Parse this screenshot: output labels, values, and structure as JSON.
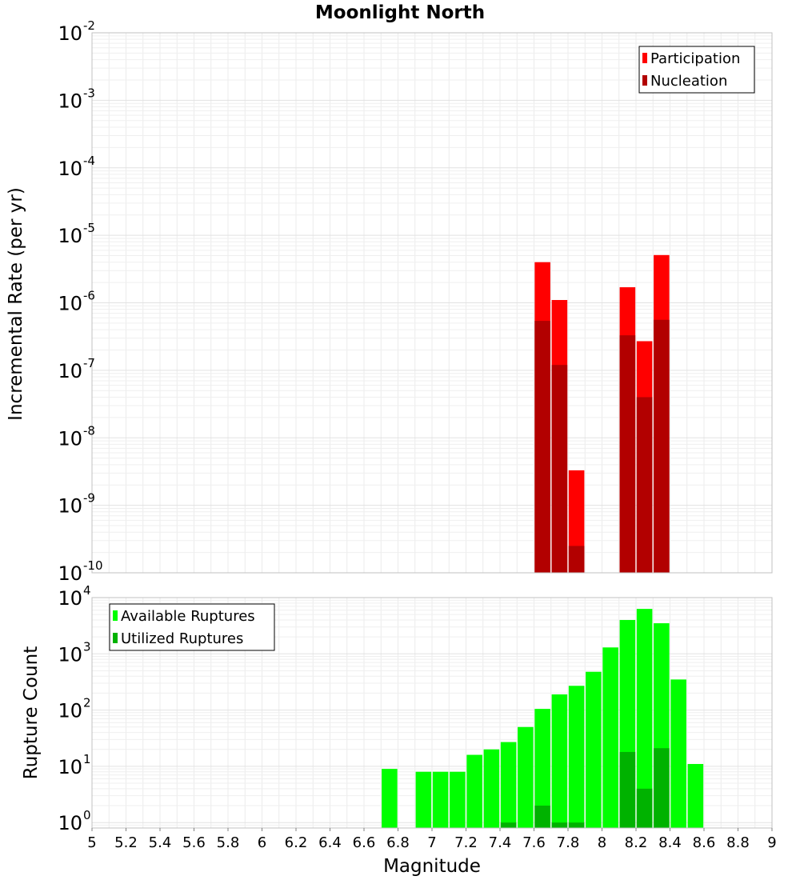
{
  "chart_data": [
    {
      "id": "top",
      "type": "bar",
      "title": "Moonlight North",
      "ylabel": "Incremental Rate (per yr)",
      "xlabel": "",
      "yscale": "log",
      "xlim": [
        5,
        9
      ],
      "ylim": [
        1e-10,
        0.01
      ],
      "y_tick_bases": [
        "10",
        "10",
        "10",
        "10",
        "10",
        "10",
        "10",
        "10",
        "10"
      ],
      "y_tick_exponents": [
        "-10",
        "-9",
        "-8",
        "-7",
        "-6",
        "-5",
        "-4",
        "-3",
        "-2"
      ],
      "legend_position": "top-right",
      "grid": true,
      "series": [
        {
          "name": "Participation",
          "color": "#ff0000",
          "x": [
            7.65,
            7.75,
            7.85,
            8.15,
            8.25,
            8.35
          ],
          "values": [
            4e-06,
            1.1e-06,
            3.3e-09,
            1.7e-06,
            2.7e-07,
            5.1e-06
          ]
        },
        {
          "name": "Nucleation",
          "color": "#b20000",
          "x": [
            7.65,
            7.75,
            7.85,
            8.15,
            8.25,
            8.35
          ],
          "values": [
            5.4e-07,
            1.2e-07,
            2.5e-10,
            3.3e-07,
            4e-08,
            5.6e-07
          ]
        }
      ]
    },
    {
      "id": "bottom",
      "type": "bar",
      "title": "",
      "ylabel": "Rupture Count",
      "xlabel": "Magnitude",
      "yscale": "log",
      "xlim": [
        5,
        9
      ],
      "ylim": [
        0.8,
        10000.0
      ],
      "y_tick_bases": [
        "10",
        "10",
        "10",
        "10",
        "10"
      ],
      "y_tick_exponents": [
        "0",
        "1",
        "2",
        "3",
        "4"
      ],
      "x_tick_labels": [
        "5",
        "5.2",
        "5.4",
        "5.6",
        "5.8",
        "6",
        "6.2",
        "6.4",
        "6.6",
        "6.8",
        "7",
        "7.2",
        "7.4",
        "7.6",
        "7.8",
        "8",
        "8.2",
        "8.4",
        "8.6",
        "8.8",
        "9"
      ],
      "legend_position": "top-left",
      "grid": true,
      "series": [
        {
          "name": "Available Ruptures",
          "color": "#00ff00",
          "x": [
            6.75,
            6.95,
            7.05,
            7.15,
            7.25,
            7.35,
            7.45,
            7.55,
            7.65,
            7.75,
            7.85,
            7.95,
            8.05,
            8.15,
            8.25,
            8.35,
            8.45,
            8.55
          ],
          "values": [
            9,
            8,
            8,
            8,
            16,
            20,
            27,
            50,
            105,
            190,
            270,
            480,
            1300,
            4000,
            6300,
            3500,
            350,
            11
          ]
        },
        {
          "name": "Utilized Ruptures",
          "color": "#00b200",
          "x": [
            7.45,
            7.65,
            7.75,
            7.85,
            8.15,
            8.25,
            8.35
          ],
          "values": [
            1,
            2,
            1,
            1,
            18,
            4,
            21
          ]
        }
      ]
    }
  ]
}
